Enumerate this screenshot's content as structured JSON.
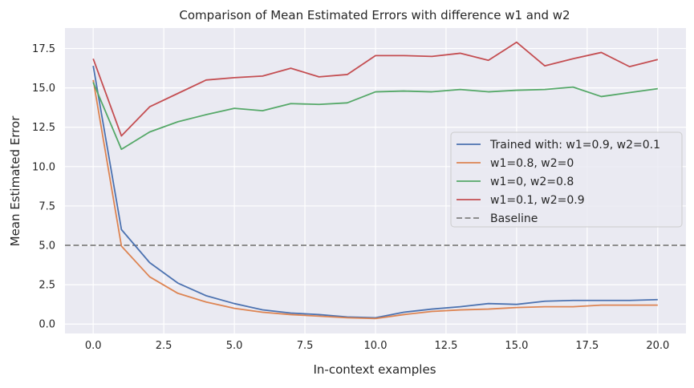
{
  "chart_data": {
    "type": "line",
    "title": "Comparison of Mean Estimated Errors with difference w1 and w2",
    "xlabel": "In-context examples",
    "ylabel": "Mean Estimated Error",
    "xlim": [
      -1.0,
      21.0
    ],
    "ylim": [
      -0.6,
      18.8
    ],
    "xticks": [
      0.0,
      2.5,
      5.0,
      7.5,
      10.0,
      12.5,
      15.0,
      17.5,
      20.0
    ],
    "xtick_labels": [
      "0.0",
      "2.5",
      "5.0",
      "7.5",
      "10.0",
      "12.5",
      "15.0",
      "17.5",
      "20.0"
    ],
    "yticks": [
      0.0,
      2.5,
      5.0,
      7.5,
      10.0,
      12.5,
      15.0,
      17.5
    ],
    "ytick_labels": [
      "0.0",
      "2.5",
      "5.0",
      "7.5",
      "10.0",
      "12.5",
      "15.0",
      "17.5"
    ],
    "grid": true,
    "legend_position": "center-right",
    "x": [
      0,
      1,
      2,
      3,
      4,
      5,
      6,
      7,
      8,
      9,
      10,
      11,
      12,
      13,
      14,
      15,
      16,
      17,
      18,
      19,
      20
    ],
    "series": [
      {
        "name": "Trained with: w1=0.9, w2=0.1",
        "color": "#4c72b0",
        "style": "solid",
        "values": [
          16.4,
          6.0,
          3.9,
          2.6,
          1.8,
          1.3,
          0.9,
          0.7,
          0.6,
          0.45,
          0.4,
          0.75,
          0.95,
          1.1,
          1.3,
          1.25,
          1.45,
          1.5,
          1.5,
          1.5,
          1.55
        ]
      },
      {
        "name": "w1=0.8, w2=0",
        "color": "#dd8452",
        "style": "solid",
        "values": [
          15.5,
          4.95,
          3.0,
          1.95,
          1.4,
          1.0,
          0.75,
          0.6,
          0.5,
          0.4,
          0.35,
          0.6,
          0.8,
          0.9,
          0.95,
          1.05,
          1.1,
          1.1,
          1.2,
          1.2,
          1.2
        ]
      },
      {
        "name": "w1=0, w2=0.8",
        "color": "#55a868",
        "style": "solid",
        "values": [
          15.35,
          11.1,
          12.2,
          12.85,
          13.3,
          13.7,
          13.55,
          14.0,
          13.95,
          14.05,
          14.75,
          14.8,
          14.75,
          14.9,
          14.75,
          14.85,
          14.9,
          15.05,
          14.45,
          14.7,
          14.95
        ]
      },
      {
        "name": "w1=0.1, w2=0.9",
        "color": "#c44e52",
        "style": "solid",
        "values": [
          16.85,
          11.95,
          13.8,
          14.65,
          15.5,
          15.65,
          15.75,
          16.25,
          15.7,
          15.85,
          17.05,
          17.05,
          17.0,
          17.2,
          16.75,
          17.9,
          16.4,
          16.85,
          17.25,
          16.35,
          16.8
        ]
      }
    ],
    "baseline": {
      "name": "Baseline",
      "value": 5.0,
      "color": "#808080",
      "style": "dashed"
    }
  }
}
